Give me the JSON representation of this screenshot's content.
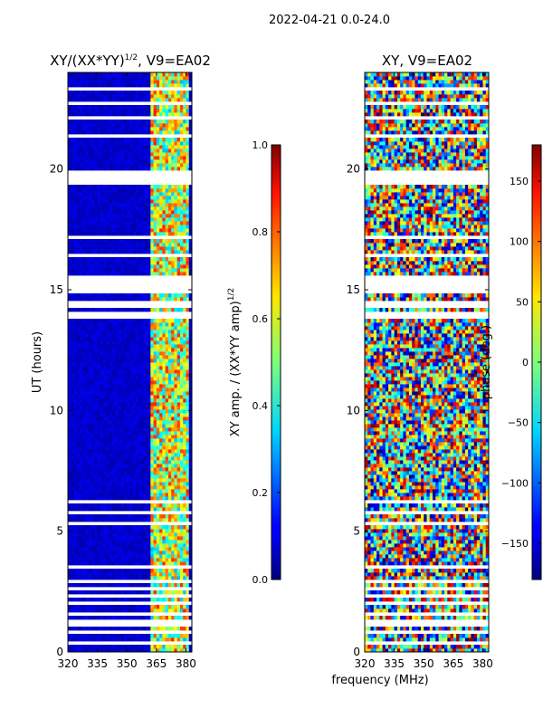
{
  "figure": {
    "suptitle": "2022-04-21 0.0-24.0",
    "xlabel": "frequency (MHz)"
  },
  "chart_data": [
    {
      "type": "heatmap",
      "title": "XY/(XX*YY)",
      "title_sup": "1/2",
      "title_suffix": ", V9=EA02",
      "ylabel": "UT (hours)",
      "xlim": [
        320,
        383
      ],
      "ylim": [
        0,
        24
      ],
      "xticks": [
        320,
        335,
        350,
        365,
        380
      ],
      "yticks": [
        0,
        5,
        10,
        15,
        20
      ],
      "colorscale": "jet",
      "value_range": [
        0.0,
        1.0
      ],
      "colorbar": {
        "label": "XY amp. / (XX*YY amp)",
        "label_sup": "1/2",
        "ticks": [
          "0.0",
          "0.2",
          "0.4",
          "0.6",
          "0.8",
          "1.0"
        ],
        "tick_values": [
          0.0,
          0.2,
          0.4,
          0.6,
          0.8,
          1.0
        ]
      },
      "description": "Mostly low amplitude (~0.05) with high-amplitude band 362-382 MHz; many flagged (blank) rows",
      "blank_hour_ranges": [
        [
          0.1,
          0.2
        ],
        [
          0.35,
          0.5
        ],
        [
          0.75,
          0.85
        ],
        [
          1.1,
          1.3
        ],
        [
          1.55,
          1.65
        ],
        [
          1.9,
          2.05
        ],
        [
          2.3,
          2.4
        ],
        [
          2.6,
          2.7
        ],
        [
          2.9,
          3.05
        ],
        [
          3.5,
          3.65
        ],
        [
          5.3,
          5.4
        ],
        [
          5.75,
          5.85
        ],
        [
          6.1,
          6.3
        ],
        [
          13.8,
          14.05
        ],
        [
          14.3,
          14.5
        ],
        [
          14.85,
          14.95
        ],
        [
          15.05,
          15.6
        ],
        [
          16.35,
          16.45
        ],
        [
          17.1,
          17.3
        ],
        [
          19.3,
          20.0
        ],
        [
          21.3,
          21.45
        ],
        [
          22.0,
          22.15
        ],
        [
          22.65,
          22.85
        ],
        [
          23.3,
          23.45
        ]
      ],
      "bright_band_mhz": [
        362,
        382
      ]
    },
    {
      "type": "heatmap",
      "title": "XY, V9=EA02",
      "xlim": [
        320,
        383
      ],
      "ylim": [
        0,
        24
      ],
      "xticks": [
        320,
        335,
        350,
        365,
        380
      ],
      "yticks": [
        0,
        5,
        10,
        15,
        20
      ],
      "colorscale": "jet",
      "value_range": [
        -180,
        180
      ],
      "colorbar": {
        "label": "phase (deg.)",
        "ticks": [
          "150",
          "100",
          "50",
          "0",
          "−50",
          "−100",
          "−150"
        ],
        "tick_values": [
          150,
          100,
          50,
          0,
          -50,
          -100,
          -150
        ]
      },
      "description": "Noisy XY phase spanning full -180 to 180 deg range; same flagged rows as amplitude panel"
    }
  ]
}
